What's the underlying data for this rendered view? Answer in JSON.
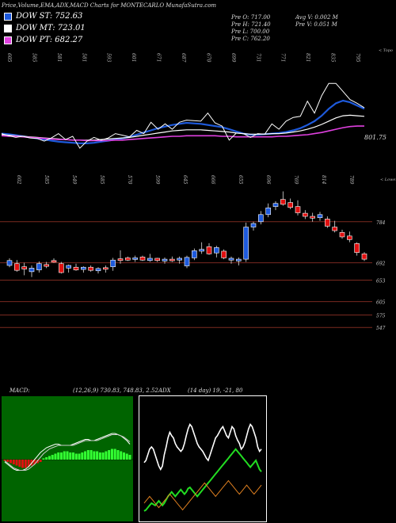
{
  "header": {
    "title": "Price,Volume,EMA,ADX,MACD Charts for MONTECARLO MunafaSutra.com",
    "legend": [
      {
        "label": "DOW ST: 752.63",
        "color": "#1e5adc"
      },
      {
        "label": "DOW MT: 723.01",
        "color": "#ffffff"
      },
      {
        "label": "DOW PT: 682.27",
        "color": "#e040e0"
      }
    ],
    "stats": {
      "prev_open": "Pre   O: 717.00",
      "prev_high": "Pre   H: 721.40",
      "prev_low": "Pre   L: 700.00",
      "prev_close": "Pre   C: 762.20",
      "avg_vol": "Avg V: 0.002  M",
      "prev_vol": "Pre   V: 0.051  M"
    }
  },
  "colors": {
    "st": "#1e5adc",
    "mt": "#ffffff",
    "pt": "#e040e0",
    "up": "#1e5adc",
    "down": "#e01010",
    "hline": "#7a2a20",
    "macd_bg": "#006400",
    "hist": "#33ff33"
  },
  "chart_data": [
    {
      "type": "line",
      "name": "ema-panel",
      "top_labels": [
        "605",
        "585",
        "581",
        "581",
        "593",
        "601",
        "671",
        "687",
        "670",
        "699",
        "731",
        "771",
        "821",
        "835",
        "795"
      ],
      "corner_label": "< Topo",
      "last_value_label": "801.75",
      "series": [
        {
          "name": "DOW ST",
          "values": [
            752,
            751,
            749,
            747,
            745,
            743,
            741,
            739,
            737,
            736,
            735,
            734,
            734,
            735,
            737,
            739,
            741,
            743,
            746,
            750,
            754,
            758,
            762,
            765,
            768,
            770,
            772,
            771,
            770,
            768,
            766,
            764,
            760,
            756,
            752,
            750,
            750,
            751,
            752,
            753,
            755,
            758,
            762,
            768,
            775,
            785,
            798,
            808,
            813,
            810,
            804,
            798
          ]
        },
        {
          "name": "DOW MT",
          "values": [
            750,
            749,
            748,
            747,
            746,
            745,
            744,
            743,
            742,
            741,
            740,
            740,
            740,
            740,
            741,
            742,
            743,
            744,
            745,
            747,
            749,
            751,
            753,
            755,
            757,
            758,
            759,
            759,
            759,
            758,
            757,
            756,
            755,
            753,
            752,
            751,
            751,
            751,
            752,
            752,
            753,
            755,
            757,
            760,
            764,
            769,
            775,
            781,
            785,
            786,
            785,
            784
          ]
        },
        {
          "name": "DOW PT",
          "values": [
            748,
            747,
            747,
            746,
            745,
            744,
            743,
            742,
            741,
            741,
            740,
            740,
            739,
            739,
            739,
            739,
            740,
            740,
            741,
            742,
            743,
            744,
            745,
            746,
            747,
            747,
            748,
            748,
            748,
            748,
            748,
            747,
            747,
            746,
            746,
            746,
            746,
            746,
            746,
            747,
            747,
            748,
            749,
            750,
            752,
            754,
            757,
            760,
            763,
            765,
            766,
            766
          ]
        },
        {
          "name": "price",
          "values": [
            752,
            748,
            745,
            747,
            744,
            743,
            738,
            744,
            752,
            741,
            747,
            725,
            738,
            745,
            740,
            744,
            752,
            749,
            746,
            758,
            752,
            773,
            760,
            770,
            760,
            773,
            777,
            776,
            775,
            790,
            772,
            766,
            740,
            753,
            752,
            745,
            752,
            751,
            770,
            760,
            775,
            782,
            784,
            812,
            790,
            822,
            845,
            845,
            830,
            815,
            808,
            800
          ]
        }
      ],
      "ylim": [
        725,
        860
      ]
    },
    {
      "type": "bar",
      "name": "candles-panel",
      "top_labels": [
        "602",
        "585",
        "549",
        "585",
        "570",
        "599",
        "645",
        "666",
        "655",
        "696",
        "769",
        "814",
        "789"
      ],
      "corner_label": "< Lower",
      "price_levels": [
        {
          "label": "784",
          "value": 784
        },
        {
          "label": "692",
          "value": 692
        },
        {
          "label": "653",
          "value": 653
        },
        {
          "label": "605",
          "value": 605
        },
        {
          "label": "575",
          "value": 575
        },
        {
          "label": "547",
          "value": 547
        }
      ],
      "candles": [
        {
          "o": 686,
          "h": 702,
          "l": 682,
          "c": 697
        },
        {
          "o": 690,
          "h": 698,
          "l": 672,
          "c": 675
        },
        {
          "o": 683,
          "h": 692,
          "l": 664,
          "c": 678
        },
        {
          "o": 672,
          "h": 686,
          "l": 660,
          "c": 680
        },
        {
          "o": 676,
          "h": 695,
          "l": 670,
          "c": 690
        },
        {
          "o": 688,
          "h": 694,
          "l": 680,
          "c": 684
        },
        {
          "o": 697,
          "h": 702,
          "l": 692,
          "c": 696
        },
        {
          "o": 690,
          "h": 694,
          "l": 668,
          "c": 670
        },
        {
          "o": 680,
          "h": 688,
          "l": 670,
          "c": 686
        },
        {
          "o": 682,
          "h": 690,
          "l": 674,
          "c": 676
        },
        {
          "o": 677,
          "h": 684,
          "l": 670,
          "c": 682
        },
        {
          "o": 682,
          "h": 686,
          "l": 672,
          "c": 675
        },
        {
          "o": 674,
          "h": 682,
          "l": 668,
          "c": 679
        },
        {
          "o": 681,
          "h": 686,
          "l": 670,
          "c": 678
        },
        {
          "o": 683,
          "h": 703,
          "l": 674,
          "c": 698
        },
        {
          "o": 701,
          "h": 720,
          "l": 690,
          "c": 697
        },
        {
          "o": 703,
          "h": 706,
          "l": 696,
          "c": 698
        },
        {
          "o": 700,
          "h": 708,
          "l": 694,
          "c": 703
        },
        {
          "o": 705,
          "h": 708,
          "l": 696,
          "c": 698
        },
        {
          "o": 697,
          "h": 712,
          "l": 694,
          "c": 702
        },
        {
          "o": 702,
          "h": 703,
          "l": 694,
          "c": 697
        },
        {
          "o": 696,
          "h": 704,
          "l": 690,
          "c": 700
        },
        {
          "o": 700,
          "h": 706,
          "l": 694,
          "c": 697
        },
        {
          "o": 698,
          "h": 706,
          "l": 690,
          "c": 702
        },
        {
          "o": 685,
          "h": 708,
          "l": 680,
          "c": 704
        },
        {
          "o": 703,
          "h": 724,
          "l": 698,
          "c": 719
        },
        {
          "o": 718,
          "h": 738,
          "l": 712,
          "c": 722
        },
        {
          "o": 728,
          "h": 736,
          "l": 710,
          "c": 712
        },
        {
          "o": 714,
          "h": 730,
          "l": 704,
          "c": 726
        },
        {
          "o": 718,
          "h": 722,
          "l": 700,
          "c": 703
        },
        {
          "o": 698,
          "h": 706,
          "l": 690,
          "c": 702
        },
        {
          "o": 696,
          "h": 704,
          "l": 686,
          "c": 700
        },
        {
          "o": 700,
          "h": 782,
          "l": 694,
          "c": 772
        },
        {
          "o": 772,
          "h": 784,
          "l": 764,
          "c": 780
        },
        {
          "o": 784,
          "h": 808,
          "l": 778,
          "c": 800
        },
        {
          "o": 800,
          "h": 825,
          "l": 794,
          "c": 815
        },
        {
          "o": 818,
          "h": 830,
          "l": 810,
          "c": 825
        },
        {
          "o": 834,
          "h": 852,
          "l": 820,
          "c": 823
        },
        {
          "o": 827,
          "h": 836,
          "l": 812,
          "c": 816
        },
        {
          "o": 818,
          "h": 832,
          "l": 798,
          "c": 804
        },
        {
          "o": 803,
          "h": 810,
          "l": 790,
          "c": 796
        },
        {
          "o": 796,
          "h": 804,
          "l": 784,
          "c": 792
        },
        {
          "o": 793,
          "h": 806,
          "l": 786,
          "c": 800
        },
        {
          "o": 790,
          "h": 796,
          "l": 770,
          "c": 774
        },
        {
          "o": 772,
          "h": 786,
          "l": 760,
          "c": 764
        },
        {
          "o": 760,
          "h": 766,
          "l": 746,
          "c": 750
        },
        {
          "o": 752,
          "h": 762,
          "l": 738,
          "c": 744
        },
        {
          "o": 735,
          "h": 738,
          "l": 708,
          "c": 715
        },
        {
          "o": 712,
          "h": 716,
          "l": 696,
          "c": 700
        }
      ],
      "ylim": [
        535,
        860
      ]
    },
    {
      "type": "bar",
      "name": "macd-panel",
      "label": "MACD:",
      "values_text": "(12,26,9) 730.83, 748.83, 2.52",
      "histogram": [
        -1,
        -2,
        -3,
        -4,
        -5,
        -6,
        -7,
        -7,
        -6,
        -5,
        -4,
        -3,
        -2,
        1,
        2,
        3,
        4,
        5,
        6,
        6,
        7,
        7,
        6,
        6,
        5,
        5,
        6,
        7,
        8,
        8,
        7,
        7,
        6,
        6,
        7,
        8,
        9,
        9,
        8,
        7,
        6,
        5,
        4
      ],
      "macd": [
        -2,
        -4,
        -6,
        -8,
        -9,
        -9,
        -9,
        -8,
        -6,
        -3,
        0,
        3,
        6,
        8,
        10,
        11,
        12,
        13,
        13,
        12,
        12,
        12,
        12,
        13,
        14,
        15,
        16,
        17,
        17,
        16,
        16,
        17,
        18,
        19,
        20,
        21,
        22,
        22,
        21,
        20,
        18,
        16,
        13
      ],
      "signal": [
        -1,
        -3,
        -5,
        -7,
        -8,
        -9,
        -9,
        -9,
        -8,
        -6,
        -4,
        -1,
        2,
        5,
        7,
        9,
        10,
        11,
        12,
        12,
        12,
        12,
        12,
        12,
        13,
        14,
        15,
        16,
        16,
        16,
        16,
        16,
        17,
        18,
        19,
        20,
        21,
        21,
        21,
        20,
        19,
        17,
        15
      ],
      "ylim": [
        -40,
        40
      ]
    },
    {
      "type": "line",
      "name": "adx-panel",
      "label": "ADX",
      "values_text": "(14  day) 19,  -21,  80",
      "series": [
        {
          "name": "ADX",
          "values": [
            48,
            50,
            55,
            60,
            62,
            60,
            55,
            50,
            45,
            42,
            45,
            55,
            62,
            70,
            75,
            72,
            70,
            65,
            62,
            60,
            58,
            60,
            65,
            72,
            78,
            82,
            80,
            75,
            70,
            65,
            62,
            60,
            58,
            55,
            52,
            50,
            55,
            60,
            65,
            70,
            72,
            75,
            78,
            80,
            76,
            72,
            70,
            75,
            80,
            78,
            72,
            68,
            65,
            60,
            62,
            66,
            72,
            78,
            82,
            80,
            75,
            70,
            62,
            58,
            60
          ]
        },
        {
          "name": "+DI",
          "values": [
            5,
            6,
            8,
            10,
            12,
            11,
            10,
            12,
            14,
            12,
            10,
            12,
            15,
            18,
            20,
            22,
            20,
            18,
            20,
            22,
            24,
            22,
            20,
            22,
            25,
            26,
            24,
            22,
            20,
            18,
            20,
            22,
            24,
            26,
            28,
            30,
            32,
            34,
            36,
            38,
            40,
            42,
            44,
            46,
            48,
            50,
            52,
            54,
            56,
            58,
            60,
            58,
            56,
            54,
            52,
            50,
            48,
            46,
            44,
            46,
            48,
            50,
            46,
            42,
            40
          ]
        },
        {
          "name": "-DI",
          "values": [
            12,
            14,
            16,
            18,
            16,
            14,
            12,
            10,
            8,
            10,
            12,
            14,
            16,
            18,
            20,
            18,
            16,
            14,
            12,
            10,
            8,
            6,
            8,
            10,
            12,
            14,
            16,
            18,
            20,
            22,
            24,
            26,
            28,
            30,
            28,
            26,
            24,
            22,
            20,
            18,
            20,
            22,
            24,
            26,
            28,
            30,
            32,
            30,
            28,
            26,
            24,
            22,
            20,
            22,
            24,
            26,
            28,
            26,
            24,
            22,
            20,
            22,
            24,
            26,
            28
          ]
        }
      ],
      "ylim": [
        0,
        100
      ]
    }
  ]
}
